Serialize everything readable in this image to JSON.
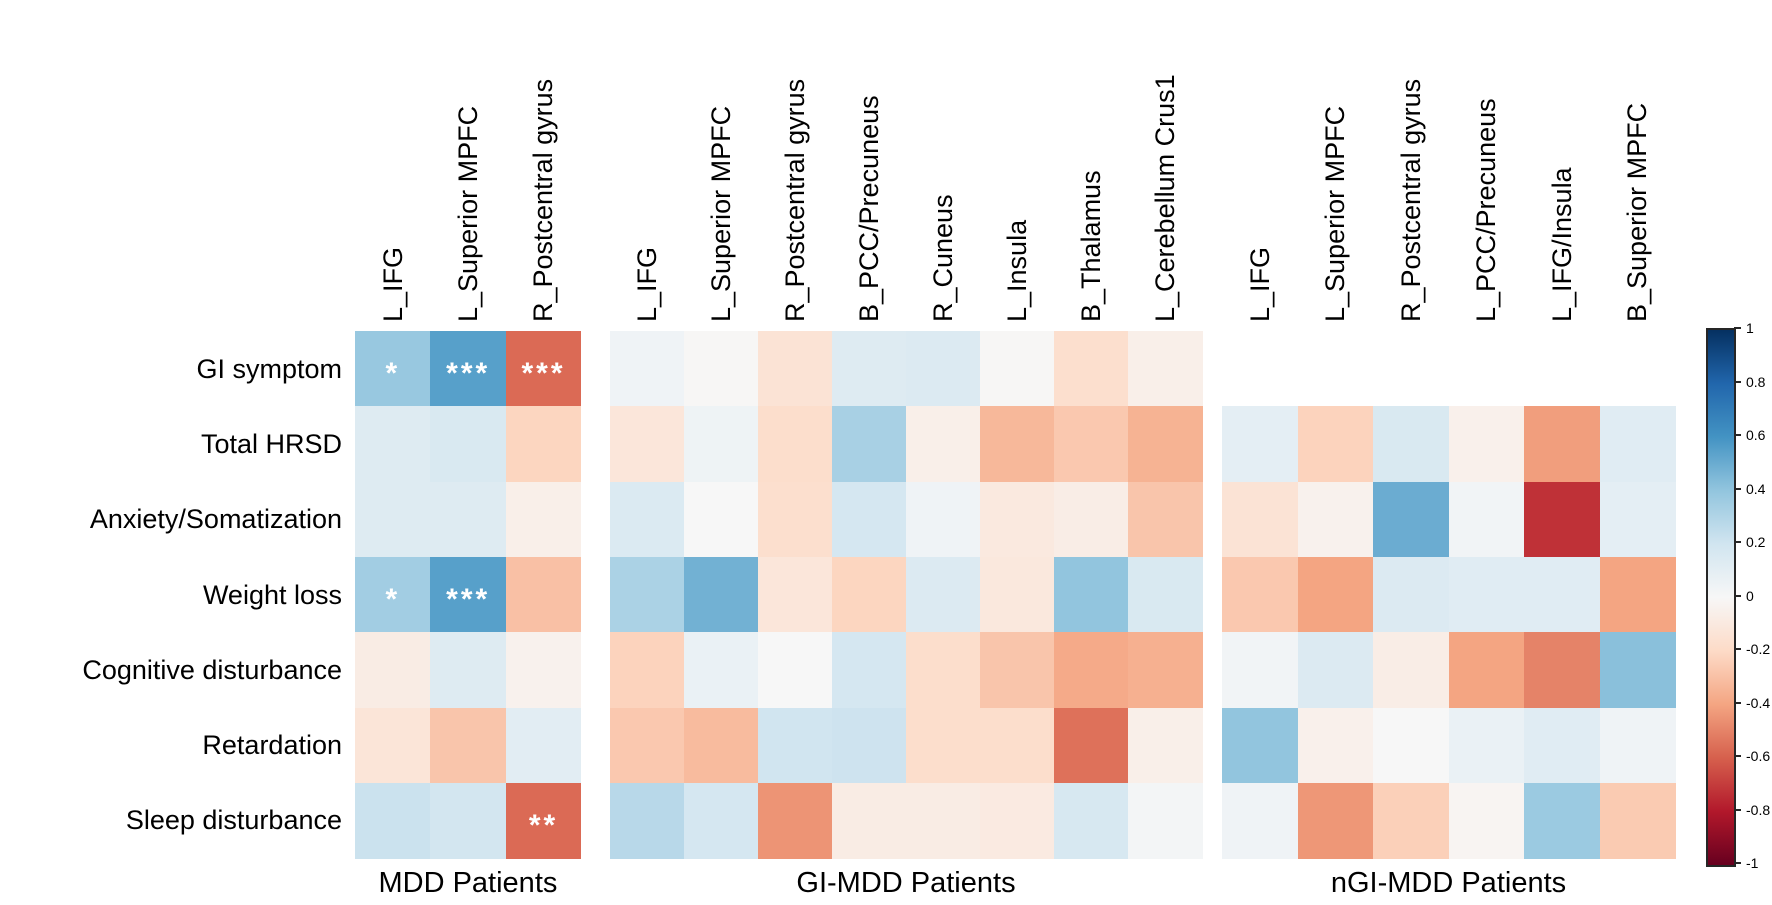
{
  "figure": {
    "background": "#ffffff",
    "text_color": "#000000"
  },
  "chart_data": {
    "type": "heatmap",
    "title": "",
    "xlabel": "",
    "ylabel": "",
    "colormap": "RdBu (blue = positive, red = negative)",
    "value_range": [
      -1,
      1
    ],
    "grid": false,
    "legend_position": "right-colorbar",
    "rows": [
      "GI symptom",
      "Total HRSD",
      "Anxiety/Somatization",
      "Weight loss",
      "Cognitive disturbance",
      "Retardation",
      "Sleep disturbance"
    ],
    "groups": [
      {
        "label": "MDD Patients",
        "columns": [
          "L_IFG",
          "L_Superior MPFC",
          "R_Postcentral gyrus"
        ],
        "values": [
          [
            0.38,
            0.55,
            -0.57
          ],
          [
            0.13,
            0.16,
            -0.22
          ],
          [
            0.13,
            0.13,
            -0.06
          ],
          [
            0.35,
            0.55,
            -0.3
          ],
          [
            -0.08,
            0.13,
            -0.04
          ],
          [
            -0.13,
            -0.28,
            0.11
          ],
          [
            0.22,
            0.19,
            -0.57
          ]
        ],
        "stars": [
          [
            "*",
            "***",
            "***"
          ],
          [
            "",
            "",
            ""
          ],
          [
            "",
            "",
            ""
          ],
          [
            "*",
            "***",
            ""
          ],
          [
            "",
            "",
            ""
          ],
          [
            "",
            "",
            ""
          ],
          [
            "",
            "",
            "**"
          ]
        ]
      },
      {
        "label": "GI-MDD Patients",
        "columns": [
          "L_IFG",
          "L_Superior MPFC",
          "R_Postcentral gyrus",
          "B_PCC/Precuneus",
          "R_Cuneus",
          "L_Insula",
          "B_Thalamus",
          "L_Cerebellum Crus1"
        ],
        "values": [
          [
            0.04,
            -0.01,
            -0.14,
            0.13,
            0.14,
            -0.01,
            -0.17,
            -0.06
          ],
          [
            -0.12,
            0.05,
            -0.18,
            0.33,
            -0.06,
            -0.33,
            -0.27,
            -0.35
          ],
          [
            0.15,
            0.0,
            -0.17,
            0.18,
            0.04,
            -0.1,
            -0.07,
            -0.28
          ],
          [
            0.32,
            0.48,
            -0.12,
            -0.22,
            0.14,
            -0.11,
            0.4,
            0.16
          ],
          [
            -0.23,
            0.07,
            0.0,
            0.18,
            -0.18,
            -0.28,
            -0.38,
            -0.36
          ],
          [
            -0.27,
            -0.32,
            0.2,
            0.21,
            -0.18,
            -0.18,
            -0.55,
            -0.06
          ],
          [
            0.28,
            0.18,
            -0.45,
            -0.08,
            -0.08,
            -0.09,
            0.17,
            0.02
          ]
        ],
        "stars": [
          [
            "",
            "",
            "",
            "",
            "",
            "",
            "",
            ""
          ],
          [
            "",
            "",
            "",
            "",
            "",
            "",
            "",
            ""
          ],
          [
            "",
            "",
            "",
            "",
            "",
            "",
            "",
            ""
          ],
          [
            "",
            "",
            "",
            "",
            "",
            "",
            "",
            ""
          ],
          [
            "",
            "",
            "",
            "",
            "",
            "",
            "",
            ""
          ],
          [
            "",
            "",
            "",
            "",
            "",
            "",
            "",
            ""
          ],
          [
            "",
            "",
            "",
            "",
            "",
            "",
            "",
            ""
          ]
        ]
      },
      {
        "label": "nGI-MDD Patients",
        "columns": [
          "L_IFG",
          "L_Superior MPFC",
          "R_Postcentral gyrus",
          "L_PCC/Precuneus",
          "L_IFG/Insula",
          "B_Superior MPFC"
        ],
        "values": [
          [
            null,
            null,
            null,
            null,
            null,
            null
          ],
          [
            0.1,
            -0.23,
            0.16,
            -0.05,
            -0.42,
            0.12
          ],
          [
            -0.14,
            -0.04,
            0.5,
            0.03,
            -0.73,
            0.1
          ],
          [
            -0.27,
            -0.4,
            0.14,
            0.12,
            0.12,
            -0.4
          ],
          [
            0.03,
            0.14,
            -0.07,
            -0.4,
            -0.5,
            0.42
          ],
          [
            0.4,
            -0.05,
            0.0,
            0.07,
            0.12,
            0.04
          ],
          [
            0.04,
            -0.44,
            -0.24,
            -0.02,
            0.37,
            -0.26
          ]
        ],
        "stars": [
          [
            "",
            "",
            "",
            "",
            "",
            ""
          ],
          [
            "",
            "",
            "",
            "",
            "",
            ""
          ],
          [
            "",
            "",
            "",
            "",
            "",
            ""
          ],
          [
            "",
            "",
            "",
            "",
            "",
            ""
          ],
          [
            "",
            "",
            "",
            "",
            "",
            ""
          ],
          [
            "",
            "",
            "",
            "",
            "",
            ""
          ],
          [
            "",
            "",
            "",
            "",
            "",
            ""
          ]
        ]
      }
    ],
    "colorbar": {
      "min": -1,
      "max": 1,
      "tick_labels": [
        "1",
        "0.8",
        "0.6",
        "0.4",
        "0.2",
        "0",
        "-0.2",
        "-0.4",
        "-0.6",
        "-0.8",
        "-1"
      ]
    }
  }
}
